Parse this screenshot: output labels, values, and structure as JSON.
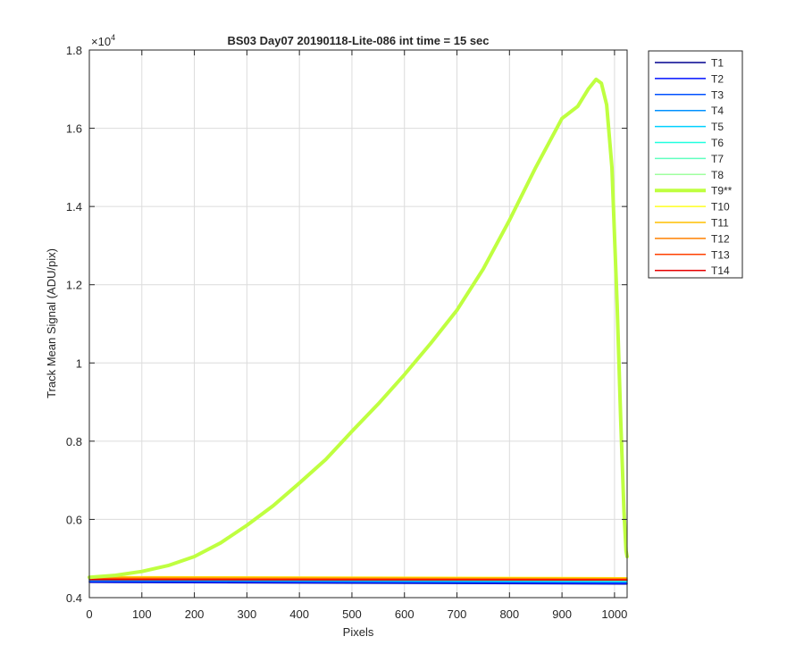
{
  "chart_data": {
    "type": "line",
    "title": "BS03 Day07 20190118-Lite-086 int time = 15 sec",
    "xlabel": "Pixels",
    "ylabel": "Track Mean Signal (ADU/pix)",
    "y_exponent_label": "×10",
    "y_exponent_power": "4",
    "y_scale_factor": 10000,
    "xlim": [
      0,
      1024
    ],
    "ylim": [
      4000,
      18000
    ],
    "xticks": [
      0,
      100,
      200,
      300,
      400,
      500,
      600,
      700,
      800,
      900,
      1000
    ],
    "yticks": [
      4000,
      6000,
      8000,
      10000,
      12000,
      14000,
      16000,
      18000
    ],
    "xtick_labels": [
      "0",
      "100",
      "200",
      "300",
      "400",
      "500",
      "600",
      "700",
      "800",
      "900",
      "1000"
    ],
    "ytick_labels": [
      "0.4",
      "0.6",
      "0.8",
      "1",
      "1.2",
      "1.4",
      "1.6",
      "1.8"
    ],
    "grid": true,
    "legend_position": "outside top-right",
    "series": [
      {
        "name": "T1",
        "color": "#00008F",
        "x": [
          0,
          1024
        ],
        "y": [
          4390,
          4350
        ]
      },
      {
        "name": "T2",
        "color": "#0010FF",
        "x": [
          0,
          1024
        ],
        "y": [
          4400,
          4360
        ]
      },
      {
        "name": "T3",
        "color": "#0050FF",
        "x": [
          0,
          1024
        ],
        "y": [
          4420,
          4380
        ]
      },
      {
        "name": "T4",
        "color": "#0090FF",
        "x": [
          0,
          1024
        ],
        "y": [
          4440,
          4400
        ]
      },
      {
        "name": "T5",
        "color": "#00D0FF",
        "x": [
          0,
          1024
        ],
        "y": [
          4460,
          4420
        ]
      },
      {
        "name": "T6",
        "color": "#20FFDF",
        "x": [
          0,
          1024
        ],
        "y": [
          4470,
          4430
        ]
      },
      {
        "name": "T7",
        "color": "#60FFBF",
        "x": [
          0,
          1024
        ],
        "y": [
          4480,
          4440
        ]
      },
      {
        "name": "T8",
        "color": "#9FFF9F",
        "x": [
          0,
          1024
        ],
        "y": [
          4490,
          4450
        ]
      },
      {
        "name": "T9**",
        "color": "#BFFF40",
        "highlight": true,
        "x": [
          0,
          50,
          100,
          150,
          200,
          250,
          300,
          350,
          400,
          450,
          500,
          550,
          600,
          650,
          700,
          750,
          800,
          850,
          900,
          930,
          950,
          965,
          975,
          985,
          995,
          1005,
          1012,
          1018,
          1022,
          1024
        ],
        "y": [
          4520,
          4570,
          4670,
          4820,
          5050,
          5400,
          5850,
          6350,
          6930,
          7530,
          8250,
          8950,
          9700,
          10500,
          11350,
          12400,
          13650,
          15000,
          16250,
          16560,
          17000,
          17250,
          17150,
          16600,
          15000,
          11500,
          8500,
          6200,
          5200,
          5050
        ]
      },
      {
        "name": "T10",
        "color": "#FFFF20",
        "x": [
          0,
          1024
        ],
        "y": [
          4540,
          4510
        ]
      },
      {
        "name": "T11",
        "color": "#FFBF00",
        "x": [
          0,
          1024
        ],
        "y": [
          4530,
          4500
        ]
      },
      {
        "name": "T12",
        "color": "#FF8000",
        "x": [
          0,
          1024
        ],
        "y": [
          4500,
          4480
        ]
      },
      {
        "name": "T13",
        "color": "#FF4000",
        "x": [
          0,
          1024
        ],
        "y": [
          4480,
          4460
        ]
      },
      {
        "name": "T14",
        "color": "#E60000",
        "x": [
          0,
          1024
        ],
        "y": [
          4460,
          4450
        ]
      }
    ]
  }
}
